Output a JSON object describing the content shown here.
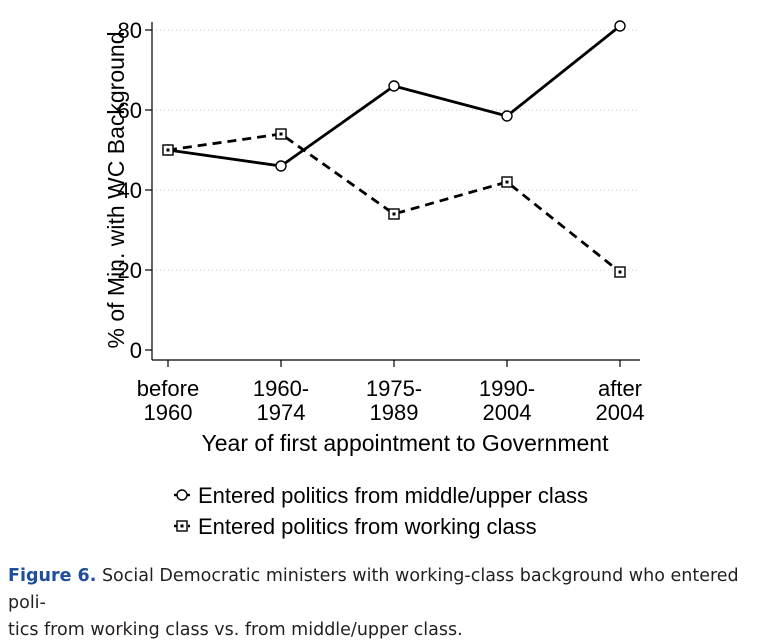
{
  "chart_data": {
    "type": "line",
    "categories": [
      "before 1960",
      "1960-1974",
      "1975-1989",
      "1990-2004",
      "after 2004"
    ],
    "x_tick_labels": [
      [
        "before",
        "1960"
      ],
      [
        "1960-",
        "1974"
      ],
      [
        "1975-",
        "1989"
      ],
      [
        "1990-",
        "2004"
      ],
      [
        "after",
        "2004"
      ]
    ],
    "series": [
      {
        "name": "Entered politics from middle/upper class",
        "marker": "circle",
        "line_style": "solid",
        "values": [
          50,
          46,
          66,
          58.5,
          81
        ]
      },
      {
        "name": "Entered politics from working class",
        "marker": "square",
        "line_style": "dashed",
        "values": [
          50,
          54,
          34,
          42,
          19.5
        ]
      }
    ],
    "ylabel": "% of Min. with WC Background",
    "xlabel": "Year of first appointment to Government",
    "ylim": [
      0,
      80
    ],
    "yticks": [
      0,
      20,
      40,
      60,
      80
    ],
    "grid": true,
    "legend_placement": "bottom"
  },
  "caption": {
    "label": "Figure 6.",
    "line1": "Social Democratic ministers with working-class background who entered poli-",
    "line2": "tics from working class vs. from middle/upper class."
  }
}
